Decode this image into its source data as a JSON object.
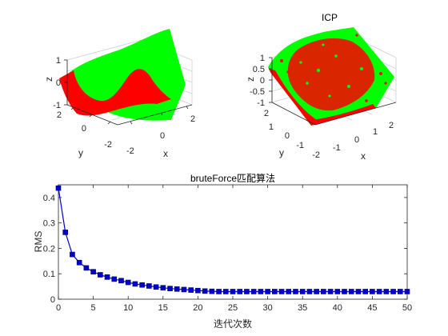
{
  "chart_data": [
    {
      "type": "scatter",
      "projection": "3d",
      "title": "",
      "xlabel": "x",
      "ylabel": "y",
      "zlabel": "z",
      "x_ticks": [
        "-2",
        "0",
        "2"
      ],
      "y_ticks": [
        "-2",
        "0",
        "2"
      ],
      "z_ticks": [
        "-1",
        "0",
        "1"
      ],
      "series": [
        {
          "color": "#00ff00"
        },
        {
          "color": "#ff0000"
        }
      ],
      "grid": true
    },
    {
      "type": "scatter",
      "projection": "3d",
      "title": "ICP",
      "xlabel": "x",
      "ylabel": "y",
      "zlabel": "z",
      "x_ticks": [
        "-1",
        "0",
        "1",
        "2"
      ],
      "y_ticks": [
        "-2",
        "-1",
        "0",
        "1",
        "2"
      ],
      "z_ticks": [
        "-1",
        "-0.5",
        "0",
        "0.5",
        "1"
      ],
      "series": [
        {
          "color": "#00ff00"
        },
        {
          "color": "#ff0000"
        }
      ],
      "grid": true
    },
    {
      "type": "line",
      "title": "bruteForce匹配算法",
      "xlabel": "迭代次数",
      "ylabel": "RMS",
      "xlim": [
        0,
        50
      ],
      "ylim": [
        0,
        0.45
      ],
      "x_ticks": [
        0,
        5,
        10,
        15,
        20,
        25,
        30,
        35,
        40,
        45,
        50
      ],
      "y_ticks": [
        0,
        0.1,
        0.2,
        0.3,
        0.4
      ],
      "y_tick_labels": [
        "0",
        "0.1",
        "0.2",
        "0.3",
        "0.4"
      ],
      "x": [
        0,
        1,
        2,
        3,
        4,
        5,
        6,
        7,
        8,
        9,
        10,
        11,
        12,
        13,
        14,
        15,
        16,
        17,
        18,
        19,
        20,
        21,
        22,
        23,
        24,
        25,
        26,
        27,
        28,
        29,
        30,
        31,
        32,
        33,
        34,
        35,
        36,
        37,
        38,
        39,
        40,
        41,
        42,
        43,
        44,
        45,
        46,
        47,
        48,
        49,
        50
      ],
      "series": [
        {
          "color": "#0000cc",
          "marker": "square",
          "values": [
            0.437,
            0.263,
            0.176,
            0.144,
            0.123,
            0.108,
            0.096,
            0.087,
            0.079,
            0.073,
            0.066,
            0.06,
            0.056,
            0.052,
            0.048,
            0.045,
            0.042,
            0.04,
            0.038,
            0.036,
            0.034,
            0.032,
            0.031,
            0.03,
            0.03,
            0.03,
            0.03,
            0.03,
            0.03,
            0.03,
            0.03,
            0.03,
            0.03,
            0.03,
            0.03,
            0.03,
            0.03,
            0.03,
            0.03,
            0.03,
            0.03,
            0.03,
            0.03,
            0.03,
            0.03,
            0.03,
            0.03,
            0.03,
            0.03,
            0.03,
            0.03
          ]
        }
      ],
      "grid": false
    }
  ]
}
